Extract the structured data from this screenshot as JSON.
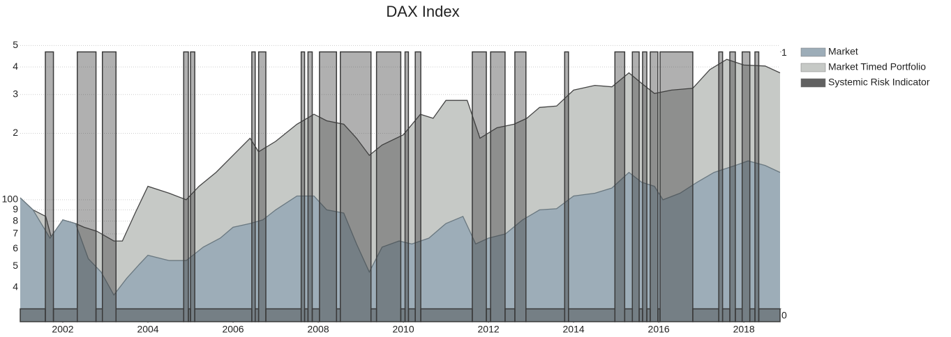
{
  "chart_data": {
    "type": "area",
    "title": "DAX Index",
    "log_y": true,
    "grid": true,
    "legend": "right",
    "xlim": [
      2001.0,
      2018.85
    ],
    "xticks": [
      2002,
      2004,
      2006,
      2008,
      2010,
      2012,
      2014,
      2016,
      2018
    ],
    "ylim": [
      28,
      580
    ],
    "yticks": [
      {
        "value": 40,
        "label": "4"
      },
      {
        "value": 50,
        "label": "5"
      },
      {
        "value": 60,
        "label": "6"
      },
      {
        "value": 70,
        "label": "7"
      },
      {
        "value": 80,
        "label": "8"
      },
      {
        "value": 90,
        "label": "9"
      },
      100,
      {
        "value": 200,
        "label": "2"
      },
      {
        "value": 300,
        "label": "3"
      },
      {
        "value": 400,
        "label": "4"
      },
      {
        "value": 500,
        "label": "5"
      }
    ],
    "y2lim": [
      -0.05,
      1.08
    ],
    "y2ticks": [
      0,
      1
    ],
    "series": [
      {
        "name": "Market",
        "color": "#9dadb8",
        "x": [
          2001.0,
          2001.3,
          2001.7,
          2002.0,
          2002.3,
          2002.6,
          2002.9,
          2003.2,
          2003.5,
          2003.8,
          2004.0,
          2004.5,
          2004.9,
          2005.3,
          2005.7,
          2006.0,
          2006.4,
          2006.7,
          2007.0,
          2007.5,
          2007.9,
          2008.2,
          2008.6,
          2008.9,
          2009.2,
          2009.5,
          2009.9,
          2010.2,
          2010.6,
          2011.0,
          2011.4,
          2011.7,
          2012.0,
          2012.4,
          2012.8,
          2013.2,
          2013.6,
          2014.0,
          2014.5,
          2014.9,
          2015.3,
          2015.6,
          2015.9,
          2016.1,
          2016.5,
          2016.9,
          2017.3,
          2017.8,
          2018.1,
          2018.5,
          2018.85
        ],
        "values": [
          102,
          90,
          67,
          81,
          78,
          54,
          47,
          37,
          44,
          51,
          56,
          53,
          53,
          61,
          67,
          75,
          78,
          81,
          90,
          104,
          104,
          90,
          87,
          63,
          47,
          61,
          65,
          63,
          67,
          78,
          84,
          63,
          67,
          70,
          81,
          90,
          91,
          104,
          107,
          113,
          133,
          120,
          115,
          100,
          107,
          120,
          133,
          143,
          150,
          143,
          133
        ]
      },
      {
        "name": "Market Timed Portfolio",
        "color": "#c6c9c6",
        "x": [
          2001.0,
          2001.3,
          2001.6,
          2001.75,
          2002.0,
          2002.3,
          2002.5,
          2002.8,
          2003.2,
          2003.4,
          2003.7,
          2004.0,
          2004.5,
          2004.9,
          2005.2,
          2005.6,
          2006.0,
          2006.4,
          2006.6,
          2007.0,
          2007.5,
          2007.9,
          2008.2,
          2008.6,
          2008.9,
          2009.2,
          2009.5,
          2010.0,
          2010.4,
          2010.7,
          2011.0,
          2011.5,
          2011.8,
          2012.2,
          2012.6,
          2012.9,
          2013.2,
          2013.6,
          2014.0,
          2014.5,
          2014.9,
          2015.3,
          2015.6,
          2015.9,
          2016.3,
          2016.8,
          2017.2,
          2017.6,
          2018.0,
          2018.5,
          2018.85
        ],
        "values": [
          102,
          90,
          84,
          65,
          81,
          78,
          75,
          72,
          65,
          65,
          87,
          115,
          107,
          100,
          115,
          133,
          159,
          190,
          165,
          184,
          220,
          244,
          228,
          220,
          190,
          159,
          177,
          197,
          244,
          234,
          282,
          282,
          190,
          212,
          220,
          234,
          262,
          266,
          314,
          330,
          325,
          376,
          337,
          303,
          314,
          320,
          389,
          433,
          408,
          404,
          376
        ]
      },
      {
        "name": "Systemic Risk Indicator",
        "color": "#3a3a3a",
        "axis": "y2",
        "x": [
          2001.0,
          2001.59,
          2001.78,
          2002.34,
          2002.78,
          2002.93,
          2003.25,
          2004.84,
          2004.95,
          2005.0,
          2005.1,
          2006.44,
          2006.52,
          2006.6,
          2006.77,
          2007.6,
          2007.68,
          2007.76,
          2007.86,
          2008.03,
          2008.43,
          2008.52,
          2009.24,
          2009.37,
          2009.94,
          2010.04,
          2010.12,
          2010.28,
          2010.41,
          2011.62,
          2011.95,
          2012.05,
          2012.39,
          2012.62,
          2012.88,
          2013.79,
          2013.88,
          2014.97,
          2015.2,
          2015.38,
          2015.54,
          2015.62,
          2015.72,
          2015.8,
          2015.98,
          2016.03,
          2016.8,
          2017.41,
          2017.5,
          2017.67,
          2017.8,
          2017.96,
          2018.14,
          2018.26,
          2018.35
        ],
        "values": [
          0,
          1,
          0,
          1,
          0,
          1,
          0,
          1,
          0,
          1,
          0,
          1,
          0,
          1,
          0,
          1,
          0,
          1,
          0,
          1,
          0,
          1,
          0,
          1,
          0,
          1,
          0,
          1,
          0,
          1,
          0,
          1,
          0,
          1,
          0,
          1,
          0,
          1,
          0,
          1,
          0,
          1,
          0,
          1,
          0,
          1,
          0,
          1,
          0,
          1,
          0,
          1,
          0,
          1,
          0
        ]
      }
    ]
  }
}
